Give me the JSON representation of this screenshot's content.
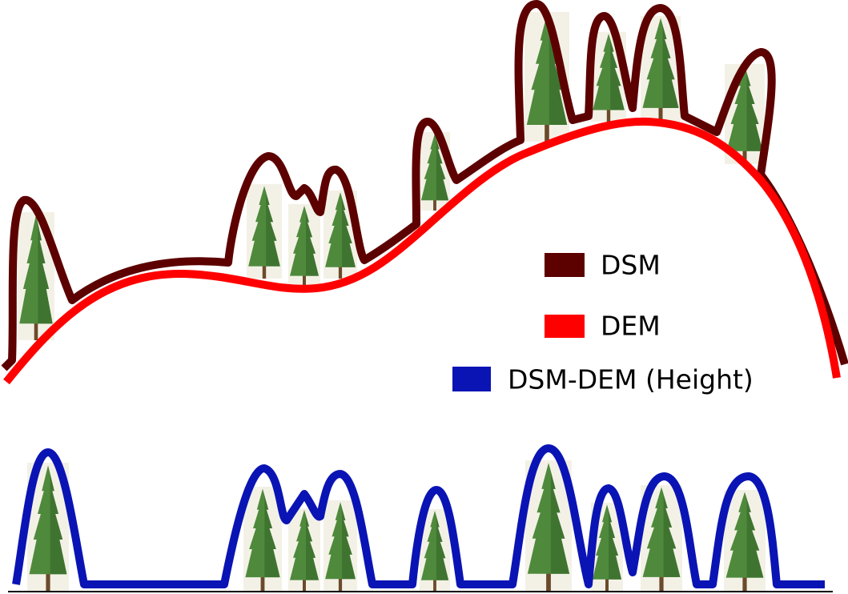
{
  "legend": [
    {
      "label": "DSM",
      "color": "#5c0000"
    },
    {
      "label": "DEM",
      "color": "#ff0000"
    },
    {
      "label": "DSM-DEM (Height)",
      "color": "#0a14b4"
    }
  ]
}
